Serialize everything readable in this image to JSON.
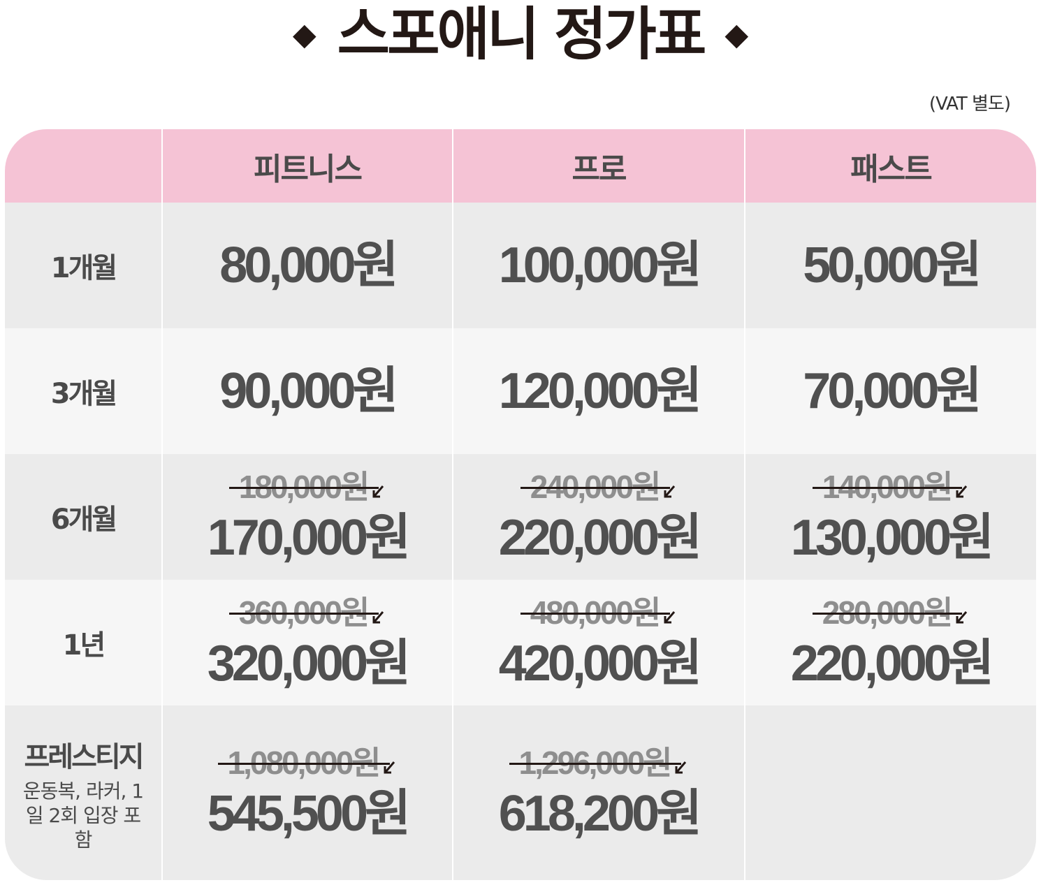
{
  "title": {
    "diamond": "◆",
    "text": "스포애니 정가표"
  },
  "vat_note": "(VAT 별도)",
  "plans": [
    "피트니스",
    "프로",
    "패스트"
  ],
  "rows": [
    {
      "period": "1개월",
      "sub": "",
      "cells": [
        {
          "old": "",
          "price": "80,000원"
        },
        {
          "old": "",
          "price": "100,000원"
        },
        {
          "old": "",
          "price": "50,000원"
        }
      ]
    },
    {
      "period": "3개월",
      "sub": "",
      "cells": [
        {
          "old": "",
          "price": "90,000원"
        },
        {
          "old": "",
          "price": "120,000원"
        },
        {
          "old": "",
          "price": "70,000원"
        }
      ]
    },
    {
      "period": "6개월",
      "sub": "",
      "cells": [
        {
          "old": "180,000원",
          "price": "170,000원"
        },
        {
          "old": "240,000원",
          "price": "220,000원"
        },
        {
          "old": "140,000원",
          "price": "130,000원"
        }
      ]
    },
    {
      "period": "1년",
      "sub": "",
      "cells": [
        {
          "old": "360,000원",
          "price": "320,000원"
        },
        {
          "old": "480,000원",
          "price": "420,000원"
        },
        {
          "old": "280,000원",
          "price": "220,000원"
        }
      ]
    },
    {
      "period": "프레스티지",
      "sub": "운동복, 라커, 1일 2회 입장 포함",
      "cells": [
        {
          "old": "1,080,000원",
          "price": "545,500원"
        },
        {
          "old": "1,296,000원",
          "price": "618,200원"
        },
        {
          "old": "",
          "price": ""
        }
      ]
    }
  ],
  "colors": {
    "header_bg": "#f5c3d5",
    "row_dark": "#ebebeb",
    "row_light": "#f6f6f6",
    "price_text": "#505050",
    "old_price_text": "#8e8e8e"
  }
}
